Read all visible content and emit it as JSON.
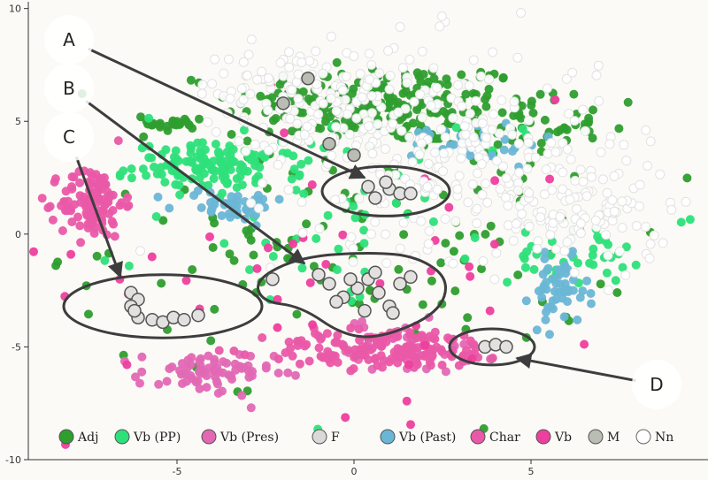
{
  "chart_data": {
    "type": "scatter",
    "xlim": [
      -9.2,
      10
    ],
    "ylim": [
      -10,
      10.3
    ],
    "x_ticks": [
      -5,
      0,
      5
    ],
    "y_ticks": [
      10,
      5,
      0,
      -5,
      -10
    ],
    "grid": false,
    "legend_position": "bottom",
    "series": [
      {
        "name": "Adj",
        "color": "#2e9e2e"
      },
      {
        "name": "Vb (PP)",
        "color": "#2ee07a"
      },
      {
        "name": "Vb (Pres)",
        "color": "#e268b4"
      },
      {
        "name": "F",
        "color": "#d9d9d9"
      },
      {
        "name": "Vb (Past)",
        "color": "#6ab6d6"
      },
      {
        "name": "Char",
        "color": "#ea58a8"
      },
      {
        "name": "Vb",
        "color": "#ee3f9e"
      },
      {
        "name": "M",
        "color": "#b9bdb4"
      },
      {
        "name": "Nn",
        "color": "#ffffff"
      }
    ],
    "clusters": [
      {
        "series": "Adj",
        "cx": 0.8,
        "cy": 5.8,
        "rx": 4.2,
        "ry": 1.8,
        "n": 200
      },
      {
        "series": "Adj",
        "cx": 4.5,
        "cy": 4.8,
        "rx": 2.5,
        "ry": 1.2,
        "n": 60
      },
      {
        "series": "Adj",
        "cx": -5.0,
        "cy": 4.9,
        "rx": 0.8,
        "ry": 0.4,
        "n": 25
      },
      {
        "series": "Adj",
        "cx": 0.0,
        "cy": 0.0,
        "rx": 8.0,
        "ry": 6.0,
        "n": 140
      },
      {
        "series": "Vb (PP)",
        "cx": -3.8,
        "cy": 3.0,
        "rx": 2.4,
        "ry": 1.0,
        "n": 130
      },
      {
        "series": "Vb (PP)",
        "cx": 6.2,
        "cy": -1.0,
        "rx": 1.8,
        "ry": 1.2,
        "n": 35
      },
      {
        "series": "Vb (PP)",
        "cx": 0.5,
        "cy": 1.0,
        "rx": 6.0,
        "ry": 5.0,
        "n": 60
      },
      {
        "series": "Vb (Pres)",
        "cx": -4.2,
        "cy": -6.2,
        "rx": 1.9,
        "ry": 1.0,
        "n": 70
      },
      {
        "series": "Vb (Pres)",
        "cx": 1.0,
        "cy": -5.0,
        "rx": 3.0,
        "ry": 1.2,
        "n": 40
      },
      {
        "series": "Vb (Past)",
        "cx": 5.8,
        "cy": -2.6,
        "rx": 0.8,
        "ry": 1.5,
        "n": 50
      },
      {
        "series": "Vb (Past)",
        "cx": -3.5,
        "cy": 1.3,
        "rx": 1.6,
        "ry": 0.7,
        "n": 45
      },
      {
        "series": "Vb (Past)",
        "cx": 3.5,
        "cy": 4.0,
        "rx": 1.8,
        "ry": 1.0,
        "n": 30
      },
      {
        "series": "Char",
        "cx": -7.4,
        "cy": 1.4,
        "rx": 0.9,
        "ry": 1.6,
        "n": 110
      },
      {
        "series": "Char",
        "cx": 1.0,
        "cy": -5.1,
        "rx": 3.6,
        "ry": 0.9,
        "n": 150
      },
      {
        "series": "Vb",
        "cx": 0.0,
        "cy": -1.0,
        "rx": 8.0,
        "ry": 7.0,
        "n": 45
      },
      {
        "series": "Nn",
        "cx": 2.0,
        "cy": 4.0,
        "rx": 5.0,
        "ry": 4.5,
        "n": 280
      },
      {
        "series": "Nn",
        "cx": 6.5,
        "cy": 1.0,
        "rx": 2.5,
        "ry": 2.5,
        "n": 120
      },
      {
        "series": "Nn",
        "cx": -1.5,
        "cy": 6.5,
        "rx": 3.0,
        "ry": 1.8,
        "n": 100
      }
    ],
    "highlight_points": {
      "A": [
        [
          0.6,
          1.6
        ],
        [
          1.0,
          2.0
        ],
        [
          1.3,
          1.8
        ],
        [
          0.9,
          2.3
        ],
        [
          1.6,
          1.8
        ],
        [
          0.4,
          2.1
        ]
      ],
      "B": [
        [
          -2.3,
          -2.0
        ],
        [
          -1.0,
          -1.8
        ],
        [
          -0.7,
          -2.2
        ],
        [
          -0.3,
          -2.8
        ],
        [
          0.1,
          -2.4
        ],
        [
          0.4,
          -2.0
        ],
        [
          0.7,
          -2.6
        ],
        [
          1.0,
          -3.2
        ],
        [
          1.3,
          -2.2
        ],
        [
          1.6,
          -1.9
        ],
        [
          1.1,
          -3.5
        ],
        [
          -0.5,
          -3.0
        ],
        [
          0.3,
          -3.4
        ],
        [
          0.6,
          -1.7
        ],
        [
          -0.1,
          -2.0
        ]
      ],
      "C": [
        [
          -6.3,
          -2.6
        ],
        [
          -6.1,
          -2.9
        ],
        [
          -6.3,
          -3.2
        ],
        [
          -6.1,
          -3.7
        ],
        [
          -5.7,
          -3.8
        ],
        [
          -5.4,
          -3.9
        ],
        [
          -5.1,
          -3.7
        ],
        [
          -4.8,
          -3.8
        ],
        [
          -4.4,
          -3.6
        ],
        [
          -6.2,
          -3.4
        ]
      ],
      "D": [
        [
          3.7,
          -5.0
        ],
        [
          4.0,
          -4.9
        ],
        [
          4.3,
          -5.0
        ]
      ],
      "M": [
        [
          -2.0,
          5.8
        ],
        [
          -0.7,
          4.0
        ],
        [
          0.0,
          3.5
        ],
        [
          -1.3,
          6.9
        ]
      ]
    },
    "callouts": [
      {
        "label": "A",
        "target": [
          0.3,
          2.5
        ]
      },
      {
        "label": "B",
        "target": [
          -1.4,
          -1.3
        ]
      },
      {
        "label": "C",
        "target": [
          -6.6,
          -1.9
        ]
      },
      {
        "label": "D",
        "target": [
          4.6,
          -5.5
        ]
      }
    ],
    "regions": [
      {
        "label": "A",
        "cx": 0.9,
        "cy": 1.9,
        "rx": 1.8,
        "ry": 1.1
      },
      {
        "label": "C",
        "cx": -5.4,
        "cy": -3.2,
        "rx": 2.8,
        "ry": 1.4
      },
      {
        "label": "D",
        "cx": 3.9,
        "cy": -5.0,
        "rx": 1.2,
        "ry": 0.8
      }
    ]
  }
}
